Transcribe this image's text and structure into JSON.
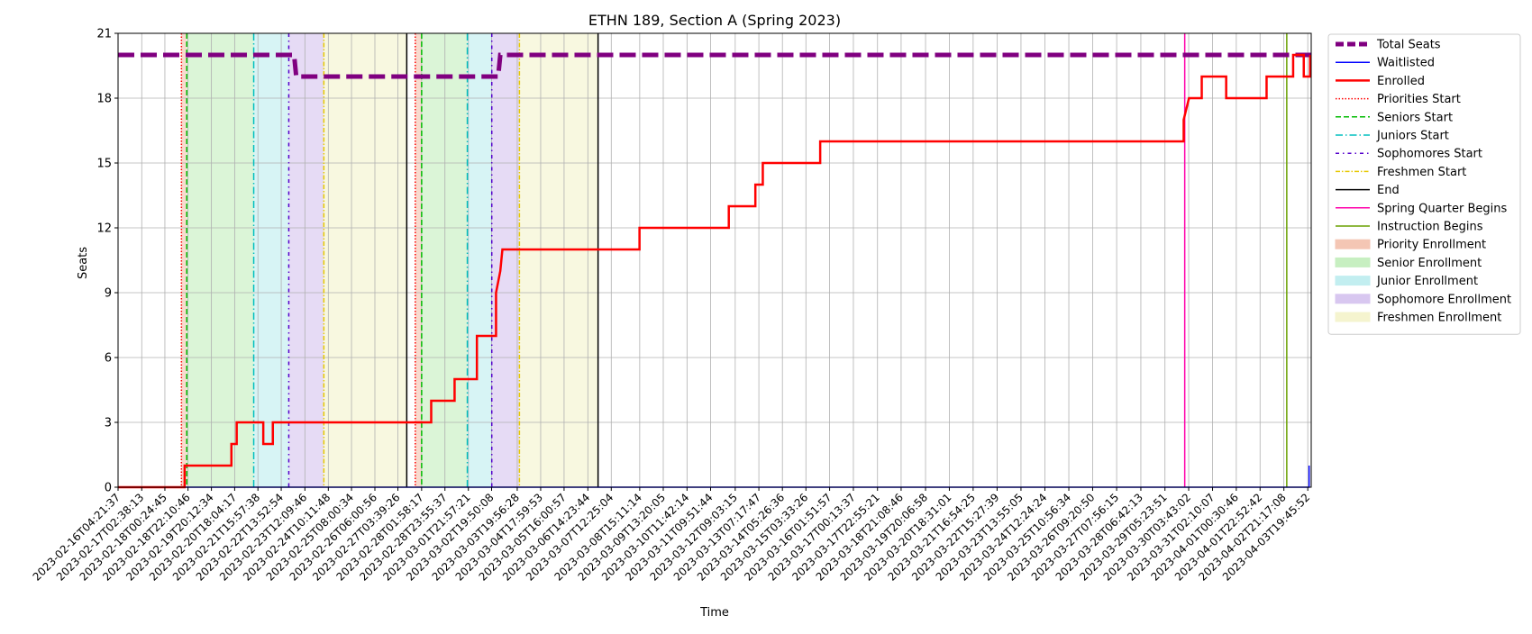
{
  "chart_data": {
    "type": "line",
    "title": "ETHN 189, Section A (Spring 2023)",
    "xlabel": "Time",
    "ylabel": "Seats",
    "ylim": [
      0,
      21
    ],
    "yticks": [
      0,
      3,
      6,
      9,
      12,
      15,
      18,
      21
    ],
    "x_start": "2023-02-16T04:21:37",
    "x_end": "2023-04-03T23:00:00",
    "grid": true,
    "legend_placement": "outside-right",
    "xtick_labels": [
      "2023-02-16T04:21:37",
      "2023-02-17T02:38:13",
      "2023-02-18T00:24:45",
      "2023-02-18T22:10:46",
      "2023-02-19T20:12:34",
      "2023-02-20T18:04:17",
      "2023-02-21T15:57:38",
      "2023-02-22T13:52:54",
      "2023-02-23T12:09:46",
      "2023-02-24T10:11:48",
      "2023-02-25T08:00:34",
      "2023-02-26T06:00:56",
      "2023-02-27T03:39:26",
      "2023-02-28T01:58:17",
      "2023-02-28T23:55:37",
      "2023-03-01T21:57:21",
      "2023-03-02T19:50:08",
      "2023-03-03T19:56:28",
      "2023-03-04T17:59:53",
      "2023-03-05T16:00:57",
      "2023-03-06T14:23:44",
      "2023-03-07T12:25:04",
      "2023-03-08T15:11:14",
      "2023-03-09T13:20:05",
      "2023-03-10T11:42:14",
      "2023-03-11T09:51:44",
      "2023-03-12T09:03:15",
      "2023-03-13T07:17:47",
      "2023-03-14T05:26:36",
      "2023-03-15T03:33:26",
      "2023-03-16T01:51:57",
      "2023-03-17T00:13:37",
      "2023-03-17T22:55:21",
      "2023-03-18T21:08:46",
      "2023-03-19T20:06:58",
      "2023-03-20T18:31:01",
      "2023-03-21T16:54:25",
      "2023-03-22T15:27:39",
      "2023-03-23T13:55:05",
      "2023-03-24T12:24:24",
      "2023-03-25T10:56:34",
      "2023-03-26T09:20:50",
      "2023-03-27T07:56:15",
      "2023-03-28T06:42:13",
      "2023-03-29T05:23:51",
      "2023-03-30T03:43:02",
      "2023-03-31T02:10:07",
      "2023-04-01T00:30:46",
      "2023-04-01T22:52:42",
      "2023-04-02T21:17:08",
      "2023-04-03T19:45:52"
    ],
    "series": [
      {
        "name": "Total Seats",
        "color": "#800080",
        "style": "dashed-thick",
        "points": [
          [
            "2023-02-16T04:21:37",
            20
          ],
          [
            "2023-02-23T02:00:00",
            20
          ],
          [
            "2023-02-23T04:00:00",
            19
          ],
          [
            "2023-03-03T02:00:00",
            19
          ],
          [
            "2023-03-03T04:00:00",
            20
          ],
          [
            "2023-04-03T23:00:00",
            20
          ]
        ]
      },
      {
        "name": "Waitlisted",
        "color": "#0000ff",
        "style": "solid",
        "points": [
          [
            "2023-02-16T04:21:37",
            0
          ],
          [
            "2023-04-03T21:00:00",
            0
          ],
          [
            "2023-04-03T21:00:00",
            1
          ]
        ]
      },
      {
        "name": "Enrolled",
        "color": "#ff0000",
        "style": "solid-thick",
        "points": [
          [
            "2023-02-16T04:21:37",
            0
          ],
          [
            "2023-02-18T19:00:00",
            0
          ],
          [
            "2023-02-18T19:00:00",
            1
          ],
          [
            "2023-02-20T15:00:00",
            1
          ],
          [
            "2023-02-20T15:00:00",
            2
          ],
          [
            "2023-02-20T20:00:00",
            2
          ],
          [
            "2023-02-20T20:00:00",
            3
          ],
          [
            "2023-02-21T21:00:00",
            3
          ],
          [
            "2023-02-21T21:00:00",
            2
          ],
          [
            "2023-02-22T06:00:00",
            2
          ],
          [
            "2023-02-22T06:00:00",
            3
          ],
          [
            "2023-02-28T11:00:00",
            3
          ],
          [
            "2023-02-28T11:00:00",
            4
          ],
          [
            "2023-03-01T09:00:00",
            4
          ],
          [
            "2023-03-01T09:00:00",
            5
          ],
          [
            "2023-03-02T06:00:00",
            5
          ],
          [
            "2023-03-02T06:00:00",
            7
          ],
          [
            "2023-03-03T00:00:00",
            7
          ],
          [
            "2023-03-03T00:00:00",
            9
          ],
          [
            "2023-03-03T04:00:00",
            10
          ],
          [
            "2023-03-03T06:00:00",
            11
          ],
          [
            "2023-03-08T15:00:00",
            11
          ],
          [
            "2023-03-08T15:00:00",
            12
          ],
          [
            "2023-03-12T03:00:00",
            12
          ],
          [
            "2023-03-12T03:00:00",
            13
          ],
          [
            "2023-03-13T04:00:00",
            13
          ],
          [
            "2023-03-13T04:00:00",
            14
          ],
          [
            "2023-03-13T11:00:00",
            14
          ],
          [
            "2023-03-13T11:00:00",
            15
          ],
          [
            "2023-03-15T17:00:00",
            15
          ],
          [
            "2023-03-15T17:00:00",
            16
          ],
          [
            "2023-03-29T23:00:00",
            16
          ],
          [
            "2023-03-29T23:00:00",
            17
          ],
          [
            "2023-03-30T04:00:00",
            18
          ],
          [
            "2023-03-30T16:00:00",
            18
          ],
          [
            "2023-03-30T16:00:00",
            19
          ],
          [
            "2023-03-31T15:00:00",
            19
          ],
          [
            "2023-03-31T15:00:00",
            18
          ],
          [
            "2023-04-02T05:00:00",
            18
          ],
          [
            "2023-04-02T05:00:00",
            19
          ],
          [
            "2023-04-03T06:00:00",
            19
          ],
          [
            "2023-04-03T06:00:00",
            20
          ],
          [
            "2023-04-03T16:00:00",
            20
          ],
          [
            "2023-04-03T16:00:00",
            19
          ],
          [
            "2023-04-03T22:00:00",
            19
          ],
          [
            "2023-04-03T22:00:00",
            20
          ]
        ]
      }
    ],
    "event_lines": [
      {
        "name": "Priorities Start",
        "color": "#ff0000",
        "dash": "1.5,2",
        "times": [
          "2023-02-18T16:00:00",
          "2023-02-27T20:00:00"
        ]
      },
      {
        "name": "Seniors Start",
        "color": "#00bb00",
        "dash": "6,3",
        "times": [
          "2023-02-18T21:00:00",
          "2023-02-28T02:00:00"
        ]
      },
      {
        "name": "Juniors Start",
        "color": "#00bfbf",
        "dash": "8,3,1.5,3",
        "times": [
          "2023-02-21T12:00:00",
          "2023-03-01T21:00:00"
        ]
      },
      {
        "name": "Sophomores Start",
        "color": "#5500cc",
        "dash": "4,4,1.5,4",
        "times": [
          "2023-02-22T21:00:00",
          "2023-03-02T20:00:00"
        ]
      },
      {
        "name": "Freshmen Start",
        "color": "#e6c800",
        "dash": "5,2,1.5,2",
        "times": [
          "2023-02-24T06:00:00",
          "2023-03-03T22:00:00"
        ]
      },
      {
        "name": "End",
        "color": "#000000",
        "dash": "",
        "times": [
          "2023-02-27T12:00:00",
          "2023-03-07T00:00:00"
        ]
      },
      {
        "name": "Spring Quarter Begins",
        "color": "#ff00aa",
        "dash": "",
        "times": [
          "2023-03-30T00:00:00"
        ]
      },
      {
        "name": "Instruction Begins",
        "color": "#6aa000",
        "dash": "",
        "times": [
          "2023-04-03T00:00:00"
        ]
      }
    ],
    "spans": [
      {
        "name": "Priority Enrollment",
        "color": "#f4c6b4",
        "ranges": [
          [
            "2023-02-18T16:00:00",
            "2023-02-18T21:00:00"
          ],
          [
            "2023-02-27T20:00:00",
            "2023-02-28T02:00:00"
          ]
        ]
      },
      {
        "name": "Senior Enrollment",
        "color": "#c7efc1",
        "ranges": [
          [
            "2023-02-18T21:00:00",
            "2023-02-21T12:00:00"
          ],
          [
            "2023-02-28T02:00:00",
            "2023-03-01T21:00:00"
          ]
        ]
      },
      {
        "name": "Junior Enrollment",
        "color": "#c2eef0",
        "ranges": [
          [
            "2023-02-21T12:00:00",
            "2023-02-22T21:00:00"
          ],
          [
            "2023-03-01T21:00:00",
            "2023-03-02T20:00:00"
          ]
        ]
      },
      {
        "name": "Sophomore Enrollment",
        "color": "#d8c7f0",
        "ranges": [
          [
            "2023-02-22T21:00:00",
            "2023-02-24T06:00:00"
          ],
          [
            "2023-03-02T20:00:00",
            "2023-03-03T22:00:00"
          ]
        ]
      },
      {
        "name": "Freshmen Enrollment",
        "color": "#f5f4cf",
        "ranges": [
          [
            "2023-02-24T06:00:00",
            "2023-02-27T12:00:00"
          ],
          [
            "2023-03-03T22:00:00",
            "2023-03-07T00:00:00"
          ]
        ]
      }
    ]
  }
}
